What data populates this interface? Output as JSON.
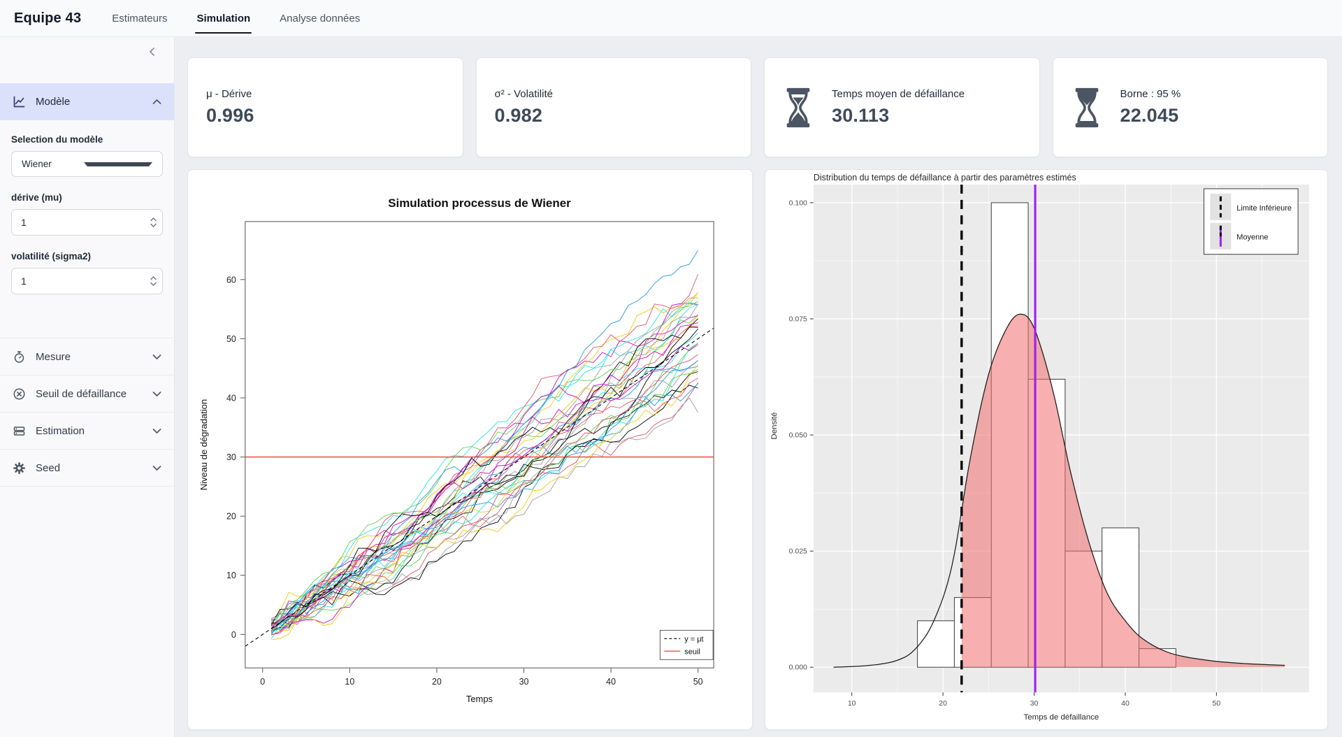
{
  "navbar": {
    "brand": "Equipe 43",
    "tabs": [
      {
        "label": "Estimateurs",
        "active": false
      },
      {
        "label": "Simulation",
        "active": true
      },
      {
        "label": "Analyse données",
        "active": false
      }
    ]
  },
  "sidebar": {
    "sections": [
      {
        "label": "Modèle",
        "icon": "chart-line-icon",
        "expanded": true
      },
      {
        "label": "Mesure",
        "icon": "stopwatch-icon",
        "expanded": false
      },
      {
        "label": "Seuil de défaillance",
        "icon": "circle-x-icon",
        "expanded": false
      },
      {
        "label": "Estimation",
        "icon": "server-icon",
        "expanded": false
      },
      {
        "label": "Seed",
        "icon": "gear-icon",
        "expanded": false
      }
    ],
    "model": {
      "select_label": "Selection du modèle",
      "select_value": "Wiener",
      "mu_label": "dérive (mu)",
      "mu_value": "1",
      "sigma_label": "volatilité (sigma2)",
      "sigma_value": "1"
    }
  },
  "value_boxes": [
    {
      "title": "μ - Dérive",
      "value": "0.996"
    },
    {
      "title": "σ² - Volatilité",
      "value": "0.982"
    },
    {
      "title": "Temps moyen de défaillance",
      "value": "30.113",
      "icon": "hourglass-icon"
    },
    {
      "title": "Borne : 95 %",
      "value": "22.045",
      "icon": "hourglass-icon"
    }
  ],
  "chart_data": [
    {
      "type": "line",
      "title": "Simulation processus de Wiener",
      "xlabel": "Temps",
      "ylabel": "Niveau de dégradation",
      "xticks": [
        0,
        10,
        20,
        30,
        40,
        50
      ],
      "yticks": [
        0,
        10,
        20,
        30,
        40,
        50,
        60
      ],
      "xlim": [
        -2,
        52
      ],
      "ylim": [
        -5.5,
        70
      ],
      "n_series": 34,
      "n_steps": 50,
      "drift_mu": 1,
      "volatility_sigma2": 1,
      "threshold": 30,
      "threshold_color": "#f03b3b",
      "palette": [
        "#000000",
        "#DF536B",
        "#61D04F",
        "#2297E6",
        "#28E2E5",
        "#CD0BBC",
        "#F5C710",
        "#9E9E9E"
      ],
      "reference_line": {
        "label": "y = μt",
        "slope": 1,
        "style": "dashed",
        "color": "#000000"
      },
      "legend": [
        {
          "label": "y = μt",
          "style": "dashed",
          "color": "#000000"
        },
        {
          "label": "seuil",
          "style": "solid",
          "color": "#f03b3b"
        }
      ],
      "legend_position": "bottom-right"
    },
    {
      "type": "histogram",
      "title": "Distribution du temps de défaillance à partir des paramètres estimés",
      "xlabel": "Temps de défaillance",
      "ylabel": "Densité",
      "xticks": [
        10,
        20,
        30,
        40,
        50
      ],
      "yticks": [
        0,
        0.025,
        0.05,
        0.075,
        0.1
      ],
      "ytick_labels": [
        "0.000",
        "0.025",
        "0.050",
        "0.075",
        "0.100"
      ],
      "panel_bg": "#EBEBEB",
      "bins": {
        "edges": [
          17.2,
          21.25,
          25.3,
          29.35,
          33.4,
          37.45,
          41.5,
          45.55
        ],
        "densities": [
          0.01,
          0.015,
          0.1,
          0.062,
          0.025,
          0.03,
          0.004
        ]
      },
      "density_curve": [
        [
          8,
          0
        ],
        [
          12,
          0.0004
        ],
        [
          15,
          0.0015
        ],
        [
          17,
          0.004
        ],
        [
          19,
          0.01
        ],
        [
          21,
          0.022
        ],
        [
          23,
          0.045
        ],
        [
          25,
          0.063
        ],
        [
          27,
          0.073
        ],
        [
          28.5,
          0.076
        ],
        [
          30,
          0.073
        ],
        [
          32,
          0.06
        ],
        [
          34,
          0.042
        ],
        [
          36,
          0.027
        ],
        [
          38,
          0.016
        ],
        [
          40,
          0.01
        ],
        [
          42,
          0.006
        ],
        [
          45,
          0.003
        ],
        [
          49,
          0.0015
        ],
        [
          53,
          0.0008
        ],
        [
          57.5,
          0.0004
        ]
      ],
      "mean_line": {
        "label": "Moyenne",
        "x": 30.113,
        "color": "#A020F0"
      },
      "lower_bound_line": {
        "label": "Limite Inférieure",
        "x": 22.045,
        "color": "#000000",
        "style": "dashed"
      },
      "shade": {
        "from": 22.045,
        "color": "#f26d6d",
        "opacity": 0.55
      },
      "legend": [
        "Limite Inférieure",
        "Moyenne"
      ],
      "legend_position": "top-right"
    }
  ]
}
